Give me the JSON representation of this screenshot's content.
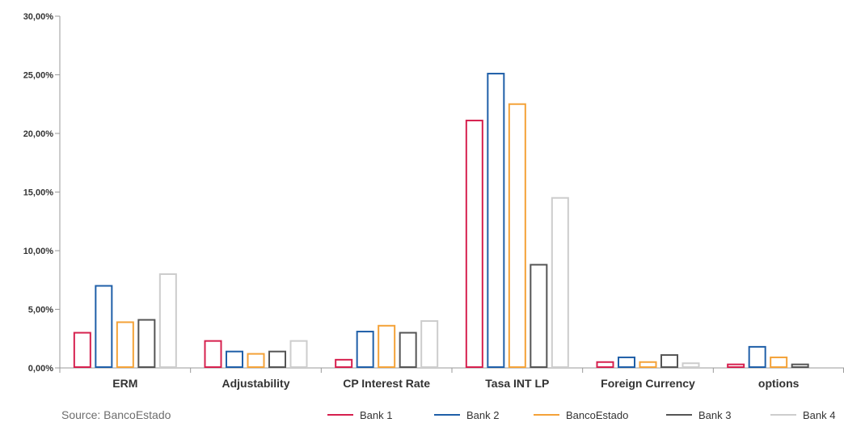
{
  "chart_data": {
    "type": "bar",
    "categories": [
      "ERM",
      "Adjustability",
      "CP Interest Rate",
      "Tasa INT LP",
      "Foreign Currency",
      "options"
    ],
    "series": [
      {
        "name": "Bank 1",
        "color": "#d6204e",
        "values": [
          3.0,
          2.3,
          0.7,
          21.1,
          0.5,
          0.3
        ]
      },
      {
        "name": "Bank 2",
        "color": "#1f5fa8",
        "values": [
          7.0,
          1.4,
          3.1,
          25.1,
          0.9,
          1.8
        ]
      },
      {
        "name": "BancoEstado",
        "color": "#f4a238",
        "values": [
          3.9,
          1.2,
          3.6,
          22.5,
          0.5,
          0.9
        ]
      },
      {
        "name": "Bank 3",
        "color": "#555555",
        "values": [
          4.1,
          1.4,
          3.0,
          8.8,
          1.1,
          0.3
        ]
      },
      {
        "name": "Bank 4",
        "color": "#cdcdcd",
        "values": [
          8.0,
          2.3,
          4.0,
          14.5,
          0.4,
          0.0
        ]
      }
    ],
    "ylim": [
      0,
      30
    ],
    "yticks": [
      "0,00%",
      "5,00%",
      "10,00%",
      "15,00%",
      "20,00%",
      "25,00%",
      "30,00%"
    ],
    "ytick_values": [
      0,
      5,
      10,
      15,
      20,
      25,
      30
    ],
    "bar_style": "outlined",
    "grid": false,
    "legend_position": "bottom-right",
    "source": "Source: BancoEstado"
  }
}
